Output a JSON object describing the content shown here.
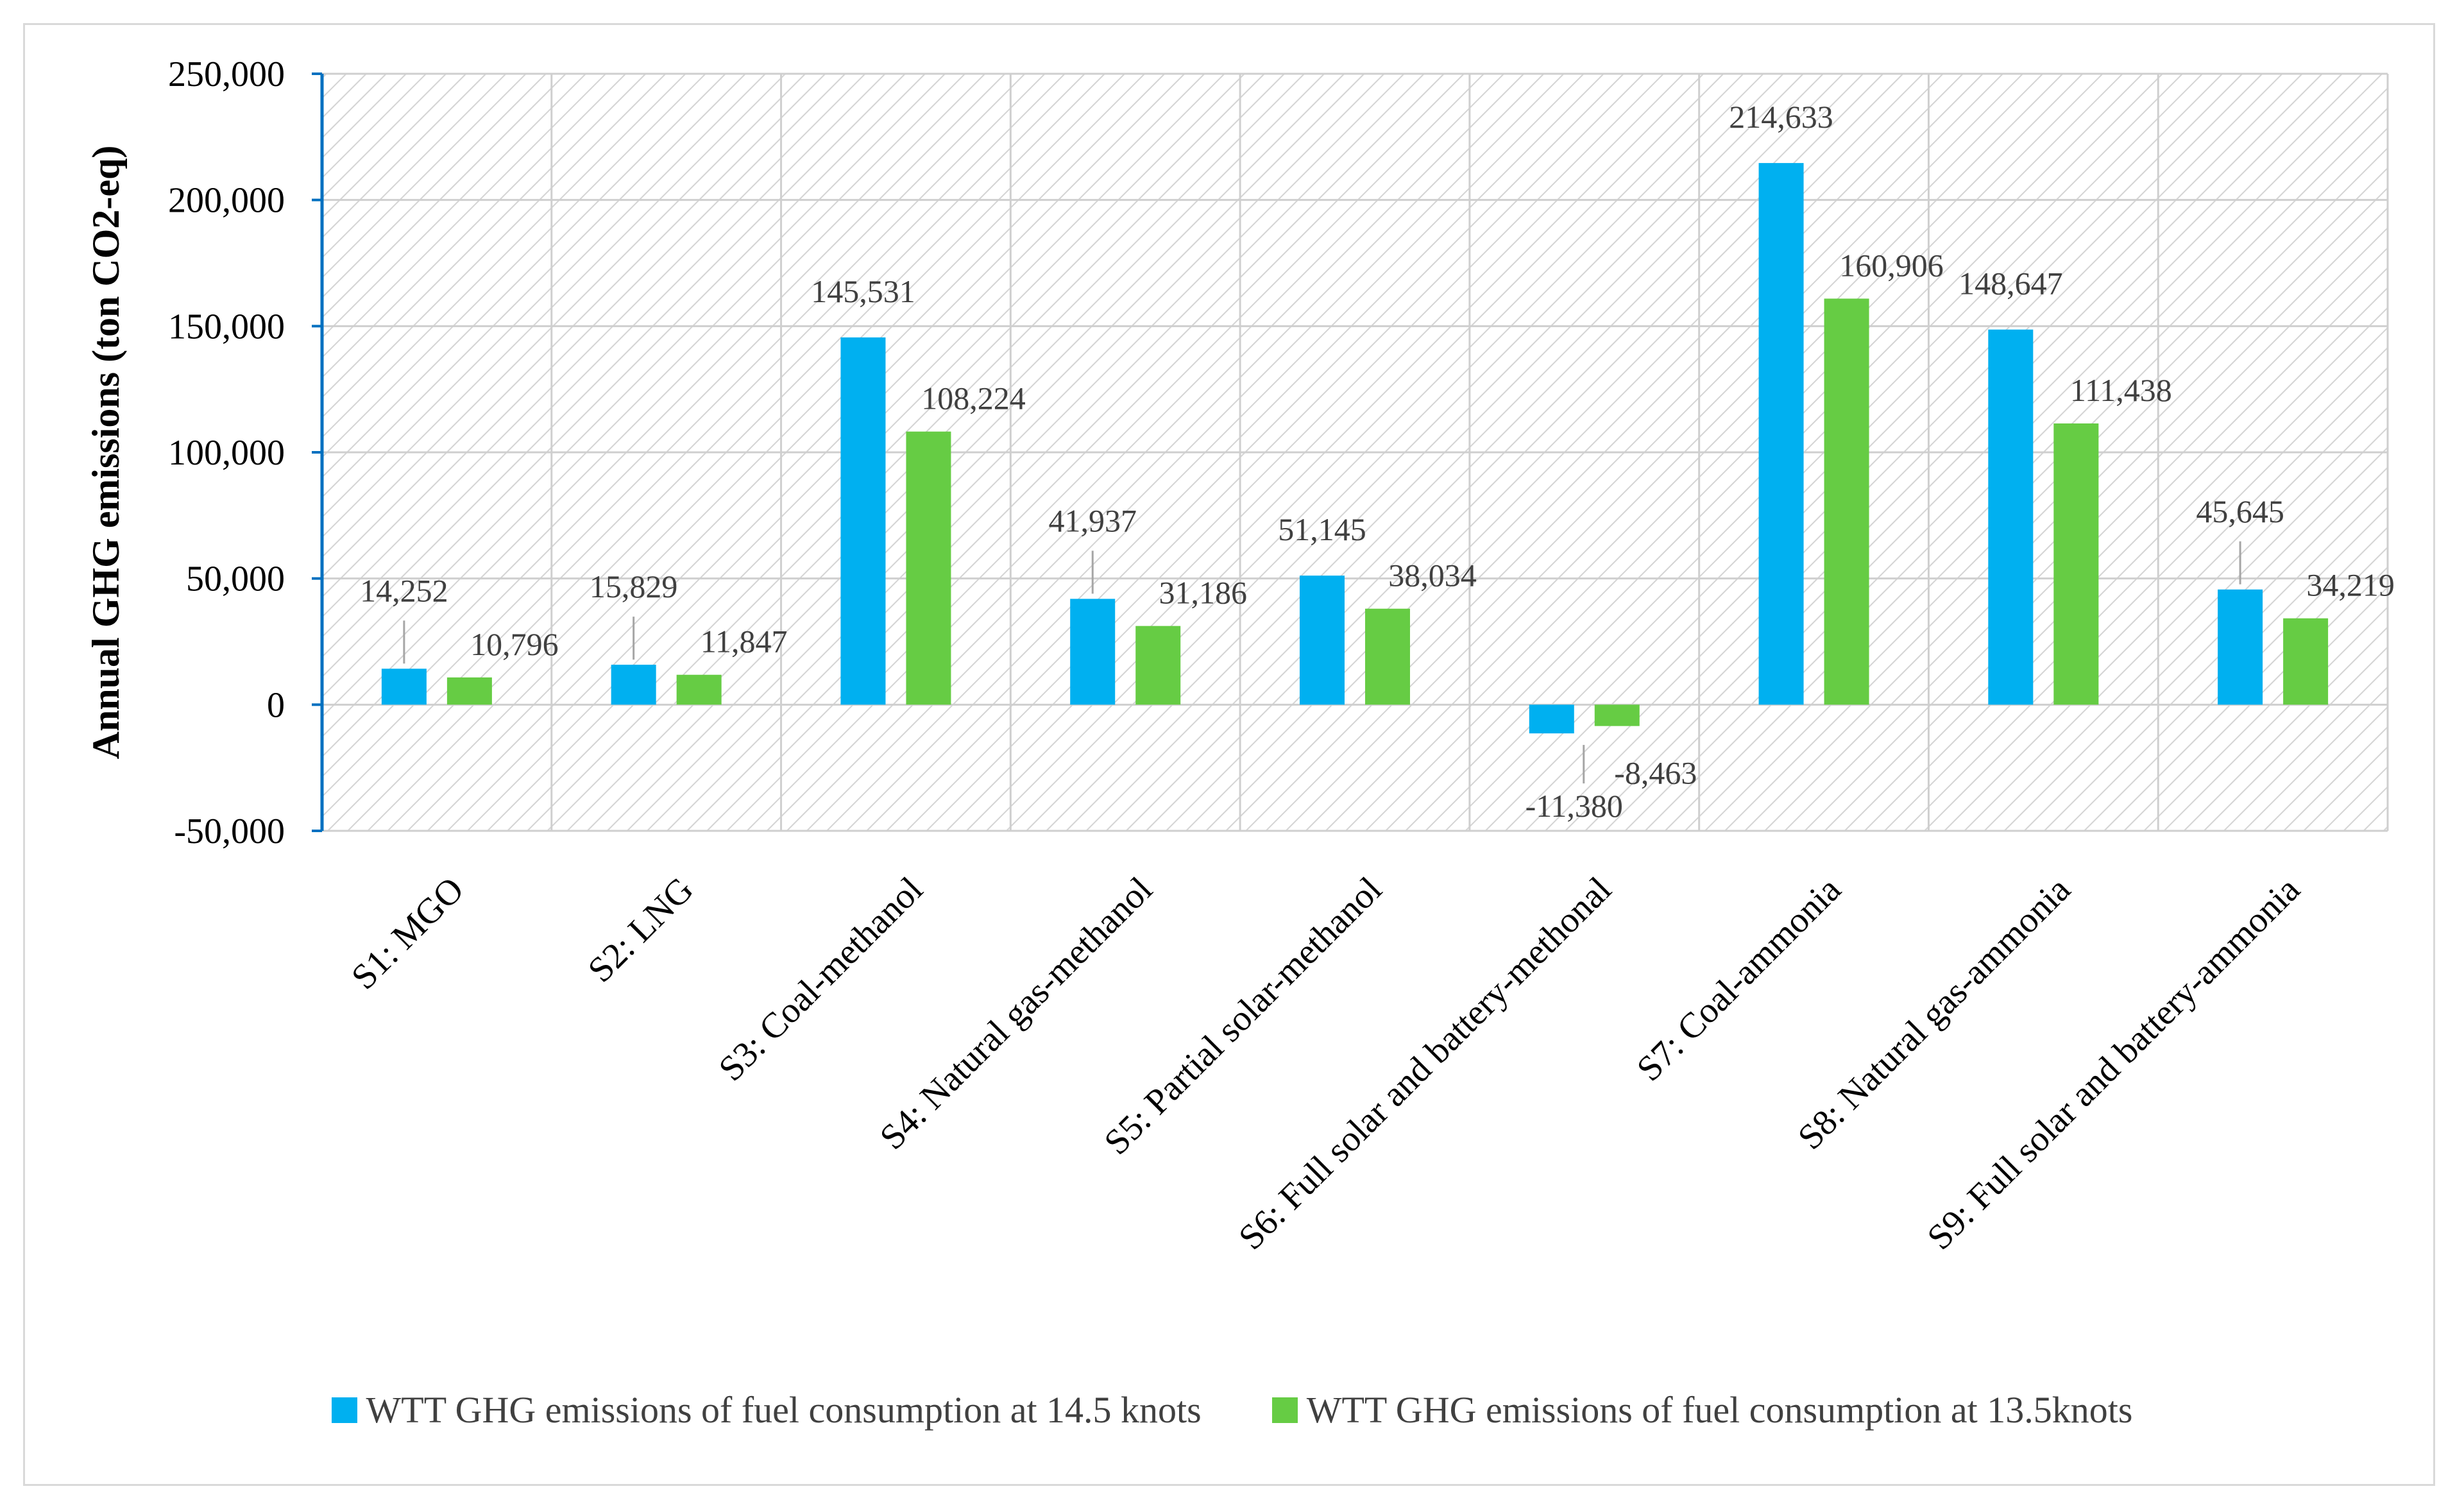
{
  "chart_data": {
    "type": "bar",
    "title": "",
    "xlabel": "",
    "ylabel": "Annual GHG emissions (ton CO2-eq)",
    "ylim": [
      -50000,
      250000
    ],
    "yticks": [
      -50000,
      0,
      50000,
      100000,
      150000,
      200000,
      250000
    ],
    "ytick_labels": [
      "-50,000",
      "0",
      "50,000",
      "100,000",
      "150,000",
      "200,000",
      "250,000"
    ],
    "grid": true,
    "legend_position": "bottom",
    "categories": [
      "S1: MGO",
      "S2: LNG",
      "S3: Coal-methanol",
      "S4: Natural gas-methanol",
      "S5: Partial solar-methanol",
      "S6: Full solar and battery-methonal",
      "S7: Coal-ammonia",
      "S8: Natural gas-ammonia",
      "S9: Full solar and battery-ammonia"
    ],
    "series": [
      {
        "name": "WTT GHG emissions of fuel consumption at 14.5 knots",
        "color": "#00b0f0",
        "values": [
          14252,
          15829,
          145531,
          41937,
          51145,
          -11380,
          214633,
          148647,
          45645
        ],
        "labels": [
          "14,252",
          "15,829",
          "145,531",
          "41,937",
          "51,145",
          "-11,380",
          "214,633",
          "148,647",
          "45,645"
        ]
      },
      {
        "name": "WTT GHG emissions of fuel consumption at 13.5knots",
        "color": "#66cc44",
        "values": [
          10796,
          11847,
          108224,
          31186,
          38034,
          -8463,
          160906,
          111438,
          34219
        ],
        "labels": [
          "10,796",
          "11,847",
          "108,224",
          "31,186",
          "38,034",
          "-8,463",
          "160,906",
          "111,438",
          "34,219"
        ]
      }
    ]
  }
}
